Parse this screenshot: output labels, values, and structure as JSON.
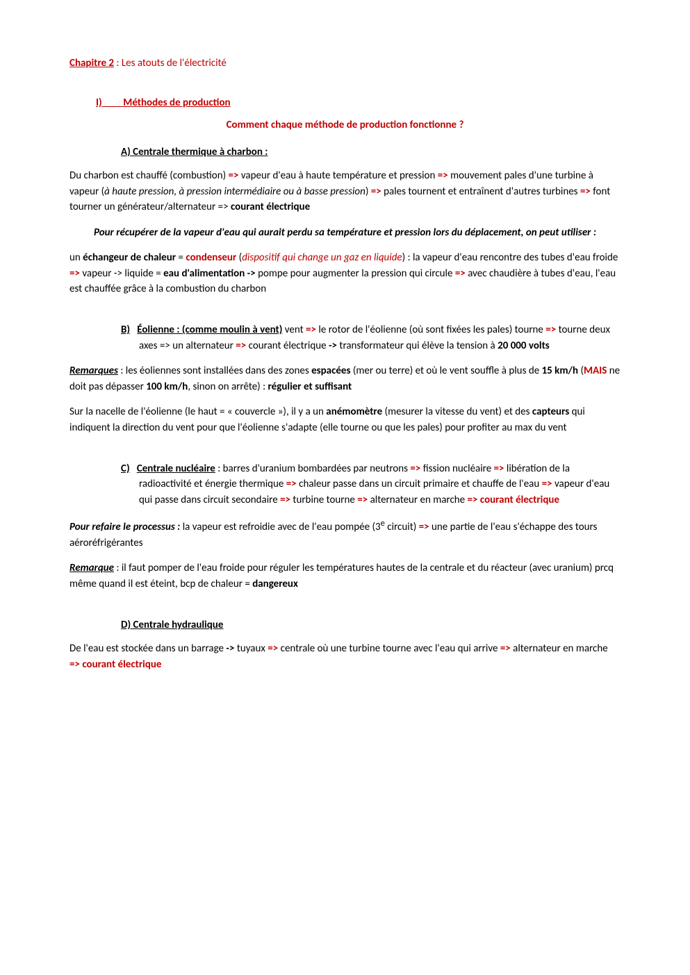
{
  "colors": {
    "accent": "#c00000",
    "text": "#000000",
    "background": "#ffffff"
  },
  "chapter": {
    "label": "Chapitre 2",
    "rest": " : Les atouts de l'électricité"
  },
  "sectionI": {
    "num": "I)",
    "title": "Méthodes de production"
  },
  "centerQuestion": "Comment chaque méthode de production fonctionne ?",
  "A": {
    "heading": "A)   Centrale thermique à charbon :",
    "p1_a": "Du charbon est chauffé (combustion) ",
    "arr": "=>",
    "p1_b": " vapeur d'eau à haute température et pression ",
    "p1_c": " mouvement pales d'une turbine à vapeur (",
    "p1_it": "à haute pression, à pression intermédiaire ou à basse pression",
    "p1_d": ") ",
    "p1_e": " pales tournent et entraînent d'autres turbines ",
    "p1_f": " font tourner un générateur/alternateur => ",
    "p1_g": "courant électrique",
    "mid1": "Pour récupérer de la vapeur d'eau qui aurait perdu sa température et pression lors du déplacement, on peut utiliser :",
    "p2_a": "un ",
    "p2_b": "échangeur de chaleur",
    "p2_c": " = ",
    "p2_d": "condenseur",
    "p2_e": " (",
    "p2_f": "dispositif qui change un gaz en liquide",
    "p2_g": ") : la vapeur d'eau rencontre des tubes d'eau froide ",
    "p2_h": " vapeur -> liquide = ",
    "p2_i": "eau d'alimentation ->",
    "p2_j": " pompe pour augmenter la pression qui circule ",
    "p2_k": " avec chaudière à tubes d'eau, l'eau est chauffée grâce à la combustion du charbon"
  },
  "B": {
    "letter": "B)",
    "title": "Éolienne : (comme moulin à vent)",
    "t1": " vent ",
    "t2": " le rotor de l'éolienne (où sont fixées les pales) tourne ",
    "t3": " tourne deux axes => un alternateur ",
    "t4": " courant électrique ",
    "t5": "->",
    "t6": " transformateur qui élève la tension à ",
    "t7": "20 000 volts",
    "rem_label": "Remarques",
    "rem1_a": " : les éoliennes sont installées dans des zones ",
    "rem1_b": "espacées",
    "rem1_c": " (mer ou terre) et où le vent souffle à plus de ",
    "rem1_d": "15 km/h",
    "rem1_e": " (",
    "rem1_f": "MAIS",
    "rem1_g": " ne doit pas dépasser ",
    "rem1_h": "100 km/h",
    "rem1_i": ", sinon on arrête) : ",
    "rem1_j": "régulier et suffisant",
    "p3_a": "Sur la nacelle de l'éolienne (le haut = « couvercle »), il y a un ",
    "p3_b": "anémomètre",
    "p3_c": " (mesurer la vitesse du vent) et des ",
    "p3_d": "capteurs",
    "p3_e": " qui indiquent la direction du vent pour que l'éolienne s'adapte (elle tourne ou que les pales) pour profiter au max du vent"
  },
  "C": {
    "letter": "C)",
    "title": "Centrale nucléaire",
    "t1": " : barres d'uranium bombardées par neutrons ",
    "t2": " fission nucléaire ",
    "t3": " libération de la radioactivité et énergie thermique ",
    "t4": " chaleur passe dans un circuit primaire et chauffe de l'eau ",
    "t5": " vapeur d'eau qui passe dans circuit secondaire ",
    "t6": " turbine tourne ",
    "t7": " alternateur en marche ",
    "t8": "=> courant électrique",
    "ref_label": "Pour refaire le processus :",
    "ref_a": " la vapeur est refroidie avec de l'eau pompée (3",
    "ref_sup": "e",
    "ref_b": " circuit) ",
    "ref_c": " une partie de l'eau s'échappe des tours aéroréfrigérantes",
    "rem_label": "Remarque",
    "rem_a": " : il faut pomper de l'eau froide pour réguler les températures hautes de la centrale et du réacteur (avec uranium) prcq même quand il est éteint, bcp de chaleur = ",
    "rem_b": "dangereux"
  },
  "D": {
    "heading": "D)   Centrale hydraulique",
    "p_a": "De l'eau est stockée dans un barrage ",
    "p_b": "->",
    "p_c": " tuyaux ",
    "p_d": " centrale où une turbine tourne avec l'eau qui arrive ",
    "p_e": " alternateur en marche ",
    "p_f": "=> courant électrique"
  }
}
